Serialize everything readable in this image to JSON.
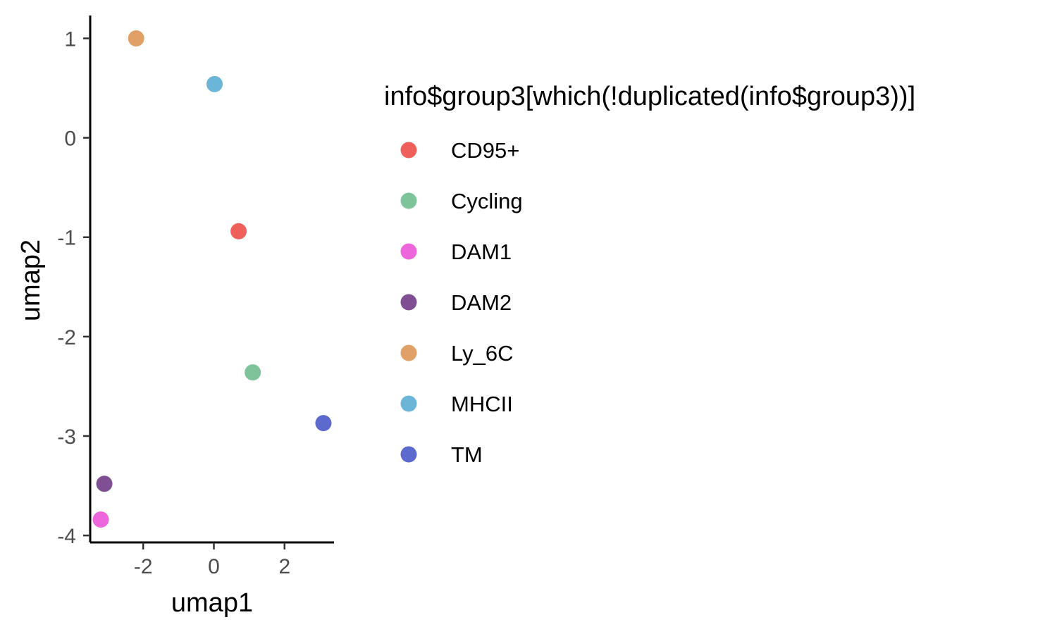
{
  "chart_data": {
    "type": "scatter",
    "xlabel": "umap1",
    "ylabel": "umap2",
    "xlim": [
      -3.5,
      3.4
    ],
    "ylim": [
      -4.07,
      1.23
    ],
    "x_ticks": [
      -2,
      0,
      2
    ],
    "y_ticks": [
      1,
      0,
      -1,
      -2,
      -3,
      -4
    ],
    "grid": false,
    "legend_position": "right",
    "legend_title": "info$group3[which(!duplicated(info$group3))]",
    "series": [
      {
        "name": "CD95+",
        "color": "#F0605A",
        "points": [
          {
            "x": 0.7,
            "y": -0.94
          }
        ]
      },
      {
        "name": "Cycling",
        "color": "#7DC49B",
        "points": [
          {
            "x": 1.1,
            "y": -2.36
          }
        ]
      },
      {
        "name": "DAM1",
        "color": "#EE66DB",
        "points": [
          {
            "x": -3.2,
            "y": -3.84
          }
        ]
      },
      {
        "name": "DAM2",
        "color": "#7F4E93",
        "points": [
          {
            "x": -3.1,
            "y": -3.48
          }
        ]
      },
      {
        "name": "Ly_6C",
        "color": "#E1A065",
        "points": [
          {
            "x": -2.2,
            "y": 1.0
          }
        ]
      },
      {
        "name": "MHCII",
        "color": "#6BB5D8",
        "points": [
          {
            "x": 0.02,
            "y": 0.54
          }
        ]
      },
      {
        "name": "TM",
        "color": "#5C6ACE",
        "points": [
          {
            "x": 3.1,
            "y": -2.87
          }
        ]
      }
    ]
  }
}
